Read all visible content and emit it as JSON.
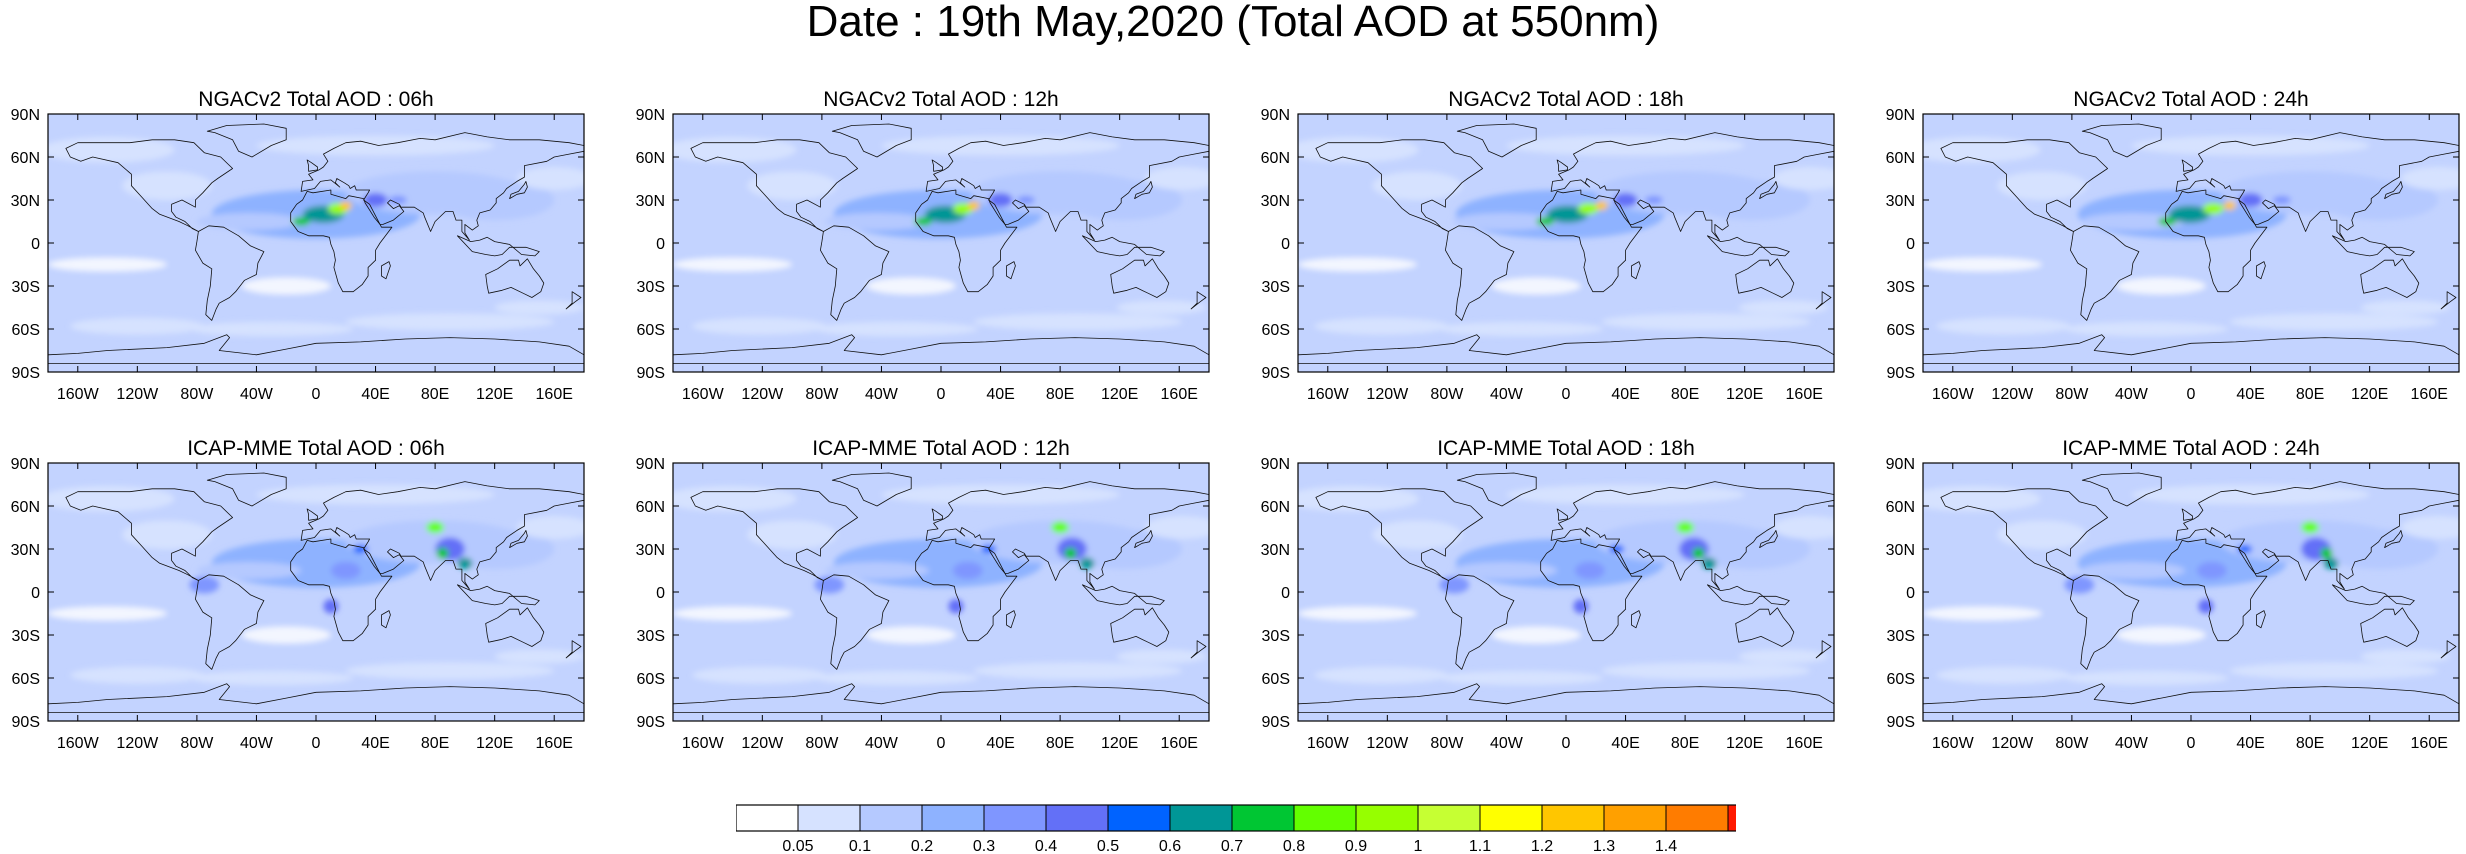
{
  "title": "Date : 19th May,2020 (Total AOD at 550nm)",
  "panels": [
    {
      "title": "NGACv2 Total AOD : 06h",
      "model": "NGACv2"
    },
    {
      "title": "NGACv2 Total AOD : 12h",
      "model": "NGACv2"
    },
    {
      "title": "NGACv2 Total AOD : 18h",
      "model": "NGACv2"
    },
    {
      "title": "NGACv2 Total AOD : 24h",
      "model": "NGACv2"
    },
    {
      "title": "ICAP-MME Total AOD : 06h",
      "model": "ICAP-MME"
    },
    {
      "title": "ICAP-MME Total AOD : 12h",
      "model": "ICAP-MME"
    },
    {
      "title": "ICAP-MME Total AOD : 18h",
      "model": "ICAP-MME"
    },
    {
      "title": "ICAP-MME Total AOD : 24h",
      "model": "ICAP-MME"
    }
  ],
  "chart_data": {
    "type": "heatmap",
    "x_ticks": [
      "160W",
      "120W",
      "80W",
      "40W",
      "0",
      "40E",
      "80E",
      "120E",
      "160E"
    ],
    "x_tick_values": [
      -160,
      -120,
      -80,
      -40,
      0,
      40,
      80,
      120,
      160
    ],
    "y_ticks": [
      "90N",
      "60N",
      "30N",
      "0",
      "30S",
      "60S",
      "90S"
    ],
    "y_tick_values": [
      90,
      60,
      30,
      0,
      -30,
      -60,
      -90
    ],
    "xlim": [
      -180,
      180
    ],
    "ylim": [
      -90,
      90
    ],
    "colorbar": {
      "labels": [
        "0.05",
        "0.1",
        "0.2",
        "0.3",
        "0.4",
        "0.5",
        "0.6",
        "0.7",
        "0.8",
        "0.9",
        "1",
        "1.1",
        "1.2",
        "1.3",
        "1.4"
      ],
      "colors": [
        "#ffffff",
        "#d6e2ff",
        "#b5c9ff",
        "#8eb2ff",
        "#7f96ff",
        "#6370f7",
        "#0063ff",
        "#009696",
        "#00c633",
        "#63ff00",
        "#96ff00",
        "#c6ff33",
        "#ffff00",
        "#ffc600",
        "#ffa000",
        "#ff7c00",
        "#ff1900"
      ]
    }
  }
}
